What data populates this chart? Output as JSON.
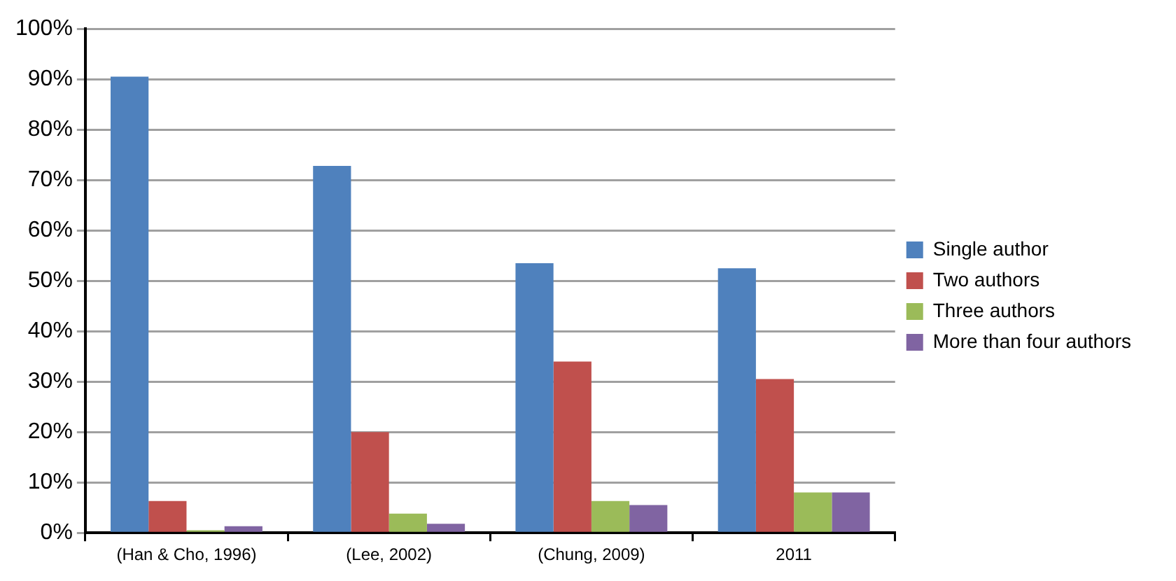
{
  "chart_data": {
    "type": "bar",
    "categories": [
      "(Han & Cho, 1996)",
      "(Lee, 2002)",
      "(Chung, 2009)",
      "2011"
    ],
    "series": [
      {
        "name": "Single author",
        "color": "#4f81bd",
        "values": [
          90.5,
          72.8,
          53.5,
          52.5
        ]
      },
      {
        "name": "Two authors",
        "color": "#c0504d",
        "values": [
          6.3,
          20,
          34,
          30.5
        ]
      },
      {
        "name": "Three authors",
        "color": "#9bbb59",
        "values": [
          0.5,
          3.8,
          6.3,
          8
        ]
      },
      {
        "name": "More than four authors",
        "color": "#8064a2",
        "values": [
          1.3,
          1.8,
          5.5,
          8
        ]
      }
    ],
    "ylim": [
      0,
      100
    ],
    "yticks": [
      {
        "value": 0,
        "label": "0%"
      },
      {
        "value": 10,
        "label": "10%"
      },
      {
        "value": 20,
        "label": "20%"
      },
      {
        "value": 30,
        "label": "30%"
      },
      {
        "value": 40,
        "label": "40%"
      },
      {
        "value": 50,
        "label": "50%"
      },
      {
        "value": 60,
        "label": "60%"
      },
      {
        "value": 70,
        "label": "70%"
      },
      {
        "value": 80,
        "label": "80%"
      },
      {
        "value": 90,
        "label": "90%"
      },
      {
        "value": 100,
        "label": "100%"
      }
    ],
    "grid": "y",
    "legend": "right"
  }
}
